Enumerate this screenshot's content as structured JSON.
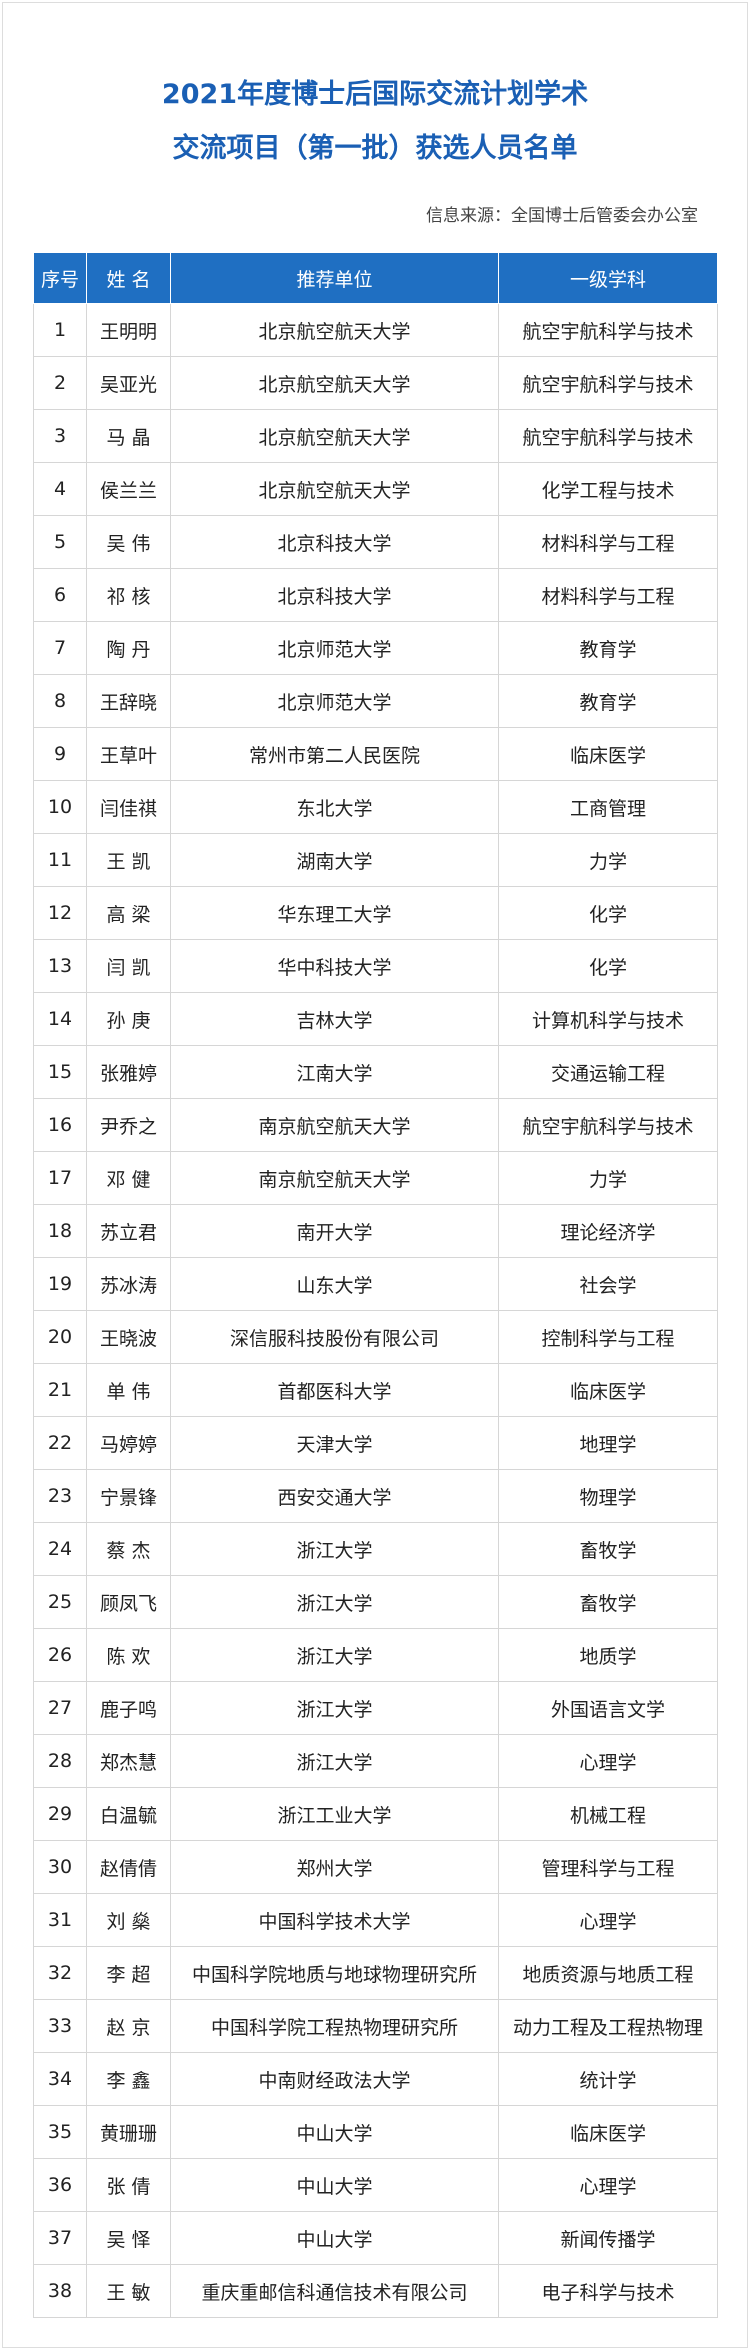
{
  "header": {
    "title_line1": "2021年度博士后国际交流计划学术",
    "title_line2": "交流项目（第一批）获选人员名单",
    "source": "信息来源：全国博士后管委会办公室"
  },
  "table": {
    "columns": [
      "序号",
      "姓 名",
      "推荐单位",
      "一级学科"
    ],
    "rows": [
      [
        1,
        "王明明",
        "北京航空航天大学",
        "航空宇航科学与技术"
      ],
      [
        2,
        "吴亚光",
        "北京航空航天大学",
        "航空宇航科学与技术"
      ],
      [
        3,
        "马 晶",
        "北京航空航天大学",
        "航空宇航科学与技术"
      ],
      [
        4,
        "侯兰兰",
        "北京航空航天大学",
        "化学工程与技术"
      ],
      [
        5,
        "吴 伟",
        "北京科技大学",
        "材料科学与工程"
      ],
      [
        6,
        "祁 核",
        "北京科技大学",
        "材料科学与工程"
      ],
      [
        7,
        "陶 丹",
        "北京师范大学",
        "教育学"
      ],
      [
        8,
        "王辞晓",
        "北京师范大学",
        "教育学"
      ],
      [
        9,
        "王草叶",
        "常州市第二人民医院",
        "临床医学"
      ],
      [
        10,
        "闫佳祺",
        "东北大学",
        "工商管理"
      ],
      [
        11,
        "王 凯",
        "湖南大学",
        "力学"
      ],
      [
        12,
        "高 梁",
        "华东理工大学",
        "化学"
      ],
      [
        13,
        "闫 凯",
        "华中科技大学",
        "化学"
      ],
      [
        14,
        "孙 庚",
        "吉林大学",
        "计算机科学与技术"
      ],
      [
        15,
        "张雅婷",
        "江南大学",
        "交通运输工程"
      ],
      [
        16,
        "尹乔之",
        "南京航空航天大学",
        "航空宇航科学与技术"
      ],
      [
        17,
        "邓 健",
        "南京航空航天大学",
        "力学"
      ],
      [
        18,
        "苏立君",
        "南开大学",
        "理论经济学"
      ],
      [
        19,
        "苏冰涛",
        "山东大学",
        "社会学"
      ],
      [
        20,
        "王晓波",
        "深信服科技股份有限公司",
        "控制科学与工程"
      ],
      [
        21,
        "单 伟",
        "首都医科大学",
        "临床医学"
      ],
      [
        22,
        "马婷婷",
        "天津大学",
        "地理学"
      ],
      [
        23,
        "宁景锋",
        "西安交通大学",
        "物理学"
      ],
      [
        24,
        "蔡 杰",
        "浙江大学",
        "畜牧学"
      ],
      [
        25,
        "顾凤飞",
        "浙江大学",
        "畜牧学"
      ],
      [
        26,
        "陈 欢",
        "浙江大学",
        "地质学"
      ],
      [
        27,
        "鹿子鸣",
        "浙江大学",
        "外国语言文学"
      ],
      [
        28,
        "郑杰慧",
        "浙江大学",
        "心理学"
      ],
      [
        29,
        "白温毓",
        "浙江工业大学",
        "机械工程"
      ],
      [
        30,
        "赵倩倩",
        "郑州大学",
        "管理科学与工程"
      ],
      [
        31,
        "刘 燊",
        "中国科学技术大学",
        "心理学"
      ],
      [
        32,
        "李 超",
        "中国科学院地质与地球物理研究所",
        "地质资源与地质工程"
      ],
      [
        33,
        "赵 京",
        "中国科学院工程热物理研究所",
        "动力工程及工程热物理"
      ],
      [
        34,
        "李 鑫",
        "中南财经政法大学",
        "统计学"
      ],
      [
        35,
        "黄珊珊",
        "中山大学",
        "临床医学"
      ],
      [
        36,
        "张 倩",
        "中山大学",
        "心理学"
      ],
      [
        37,
        "吴 怿",
        "中山大学",
        "新闻传播学"
      ],
      [
        38,
        "王 敏",
        "重庆重邮信科通信技术有限公司",
        "电子科学与技术"
      ]
    ]
  }
}
